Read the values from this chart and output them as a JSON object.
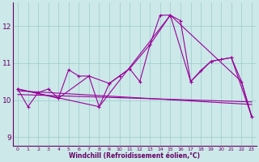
{
  "xlabel": "Windchill (Refroidissement éolien,°C)",
  "ylabel": "",
  "bg_color": "#cce8e8",
  "grid_color": "#99cccc",
  "line_color": "#990099",
  "xlim": [
    -0.5,
    23.5
  ],
  "ylim": [
    8.75,
    12.65
  ],
  "yticks": [
    9,
    10,
    11,
    12
  ],
  "xticks": [
    0,
    1,
    2,
    3,
    4,
    5,
    6,
    7,
    8,
    9,
    10,
    11,
    12,
    13,
    14,
    15,
    16,
    17,
    18,
    19,
    20,
    21,
    22,
    23
  ],
  "series1_x": [
    0,
    1,
    2,
    3,
    4,
    5,
    6,
    7,
    8,
    9,
    10,
    11,
    12,
    13,
    14,
    15,
    16,
    17,
    18,
    19,
    20,
    21,
    22,
    23
  ],
  "series1_y": [
    10.3,
    9.82,
    10.2,
    10.3,
    10.05,
    10.82,
    10.65,
    10.65,
    9.82,
    10.45,
    10.65,
    10.85,
    10.5,
    11.5,
    12.3,
    12.3,
    12.15,
    10.5,
    10.8,
    11.05,
    11.1,
    11.15,
    10.5,
    9.55
  ],
  "series2_x": [
    0,
    4,
    7,
    9,
    11,
    13,
    15,
    17,
    19,
    21,
    23
  ],
  "series2_y": [
    10.3,
    10.05,
    10.65,
    10.45,
    10.85,
    11.5,
    12.3,
    10.5,
    11.05,
    11.15,
    9.55
  ],
  "series3_x": [
    0,
    23
  ],
  "series3_y": [
    10.25,
    9.88
  ],
  "series4_x": [
    0,
    23
  ],
  "series4_y": [
    10.15,
    9.95
  ],
  "series5_x": [
    0,
    8,
    15,
    22,
    23
  ],
  "series5_y": [
    10.3,
    9.82,
    12.3,
    10.5,
    9.55
  ]
}
